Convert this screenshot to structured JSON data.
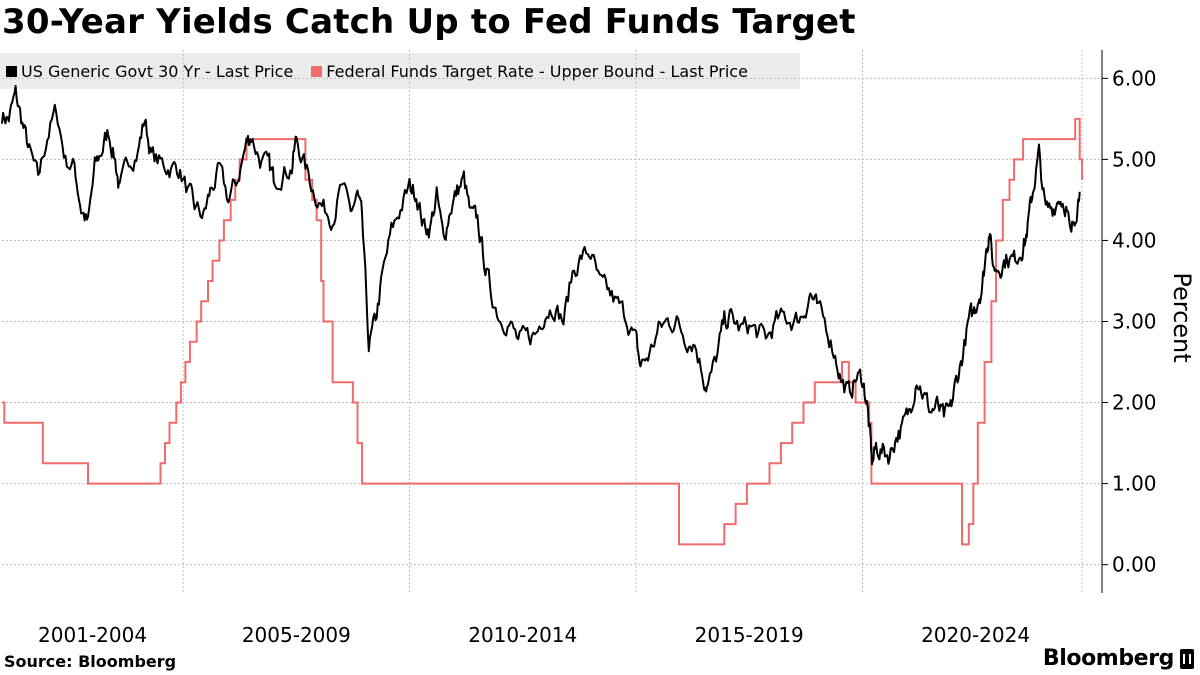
{
  "chart_data": {
    "type": "line",
    "title": "30-Year Yields Catch Up to Fed Funds Target",
    "ylabel": "Percent",
    "ylim": [
      -0.35,
      6.35
    ],
    "xlim": [
      2001.0,
      2024.85
    ],
    "y_ticks": [
      "0.00",
      "1.00",
      "2.00",
      "3.00",
      "4.00",
      "5.00",
      "6.00"
    ],
    "x_period_labels": [
      "2001-2004",
      "2005-2009",
      "2010-2014",
      "2015-2019",
      "2020-2024"
    ],
    "x_period_centers": [
      2003.0,
      2007.5,
      2012.5,
      2017.5,
      2022.5
    ],
    "x_period_boundaries": [
      2005.0,
      2010.0,
      2015.0,
      2020.0,
      2024.85
    ],
    "legend_position": "top-left",
    "grid": true,
    "series": [
      {
        "name": "US Generic Govt 30 Yr - Last Price",
        "color": "#000000",
        "x": [
          2001.0,
          2001.15,
          2001.3,
          2001.45,
          2001.6,
          2001.8,
          2002.0,
          2002.2,
          2002.4,
          2002.6,
          2002.75,
          2002.9,
          2003.05,
          2003.2,
          2003.35,
          2003.5,
          2003.6,
          2003.8,
          2004.0,
          2004.15,
          2004.3,
          2004.5,
          2004.7,
          2004.9,
          2005.1,
          2005.25,
          2005.45,
          2005.6,
          2005.8,
          2006.0,
          2006.2,
          2006.4,
          2006.5,
          2006.7,
          2006.9,
          2007.0,
          2007.2,
          2007.4,
          2007.5,
          2007.7,
          2007.9,
          2008.1,
          2008.3,
          2008.5,
          2008.7,
          2008.85,
          2008.95,
          2009.1,
          2009.25,
          2009.4,
          2009.6,
          2009.8,
          2010.0,
          2010.15,
          2010.3,
          2010.45,
          2010.6,
          2010.75,
          2010.9,
          2011.05,
          2011.2,
          2011.35,
          2011.5,
          2011.65,
          2011.8,
          2012.0,
          2012.2,
          2012.4,
          2012.6,
          2012.8,
          2013.0,
          2013.2,
          2013.4,
          2013.6,
          2013.8,
          2014.0,
          2014.2,
          2014.4,
          2014.6,
          2014.8,
          2015.0,
          2015.1,
          2015.3,
          2015.5,
          2015.7,
          2015.9,
          2016.1,
          2016.3,
          2016.5,
          2016.6,
          2016.8,
          2016.95,
          2017.1,
          2017.3,
          2017.5,
          2017.7,
          2017.9,
          2018.1,
          2018.3,
          2018.5,
          2018.7,
          2018.85,
          2019.0,
          2019.2,
          2019.4,
          2019.55,
          2019.7,
          2019.85,
          2020.0,
          2020.1,
          2020.18,
          2020.22,
          2020.3,
          2020.45,
          2020.6,
          2020.75,
          2020.9,
          2021.05,
          2021.2,
          2021.35,
          2021.5,
          2021.65,
          2021.8,
          2021.95,
          2022.05,
          2022.2,
          2022.35,
          2022.45,
          2022.55,
          2022.65,
          2022.75,
          2022.8,
          2022.9,
          2023.05,
          2023.2,
          2023.35,
          2023.5,
          2023.6,
          2023.7,
          2023.8,
          2023.9,
          2024.05,
          2024.2,
          2024.35,
          2024.5,
          2024.6,
          2024.7,
          2024.8
        ],
        "values": [
          5.55,
          5.5,
          5.8,
          5.45,
          5.1,
          4.75,
          5.3,
          5.6,
          5.0,
          4.9,
          4.4,
          4.2,
          4.9,
          5.1,
          5.35,
          5.0,
          4.6,
          5.0,
          5.1,
          5.5,
          5.05,
          4.95,
          4.9,
          4.9,
          4.6,
          4.4,
          4.3,
          4.6,
          4.85,
          4.5,
          4.75,
          5.2,
          5.3,
          5.0,
          4.9,
          4.75,
          4.85,
          4.9,
          5.25,
          4.9,
          4.6,
          4.4,
          4.3,
          4.65,
          4.35,
          4.55,
          4.25,
          2.7,
          3.0,
          3.55,
          4.1,
          4.4,
          4.65,
          4.6,
          4.2,
          4.15,
          4.55,
          4.0,
          4.4,
          4.6,
          4.75,
          4.3,
          4.25,
          3.75,
          3.35,
          3.05,
          3.0,
          2.75,
          2.8,
          2.85,
          3.15,
          3.2,
          3.0,
          3.6,
          3.8,
          3.85,
          3.45,
          3.35,
          3.2,
          3.05,
          2.75,
          2.45,
          2.6,
          2.9,
          3.0,
          3.0,
          2.8,
          2.75,
          2.3,
          2.2,
          2.6,
          3.0,
          3.05,
          2.9,
          2.95,
          2.85,
          2.8,
          3.0,
          3.05,
          3.0,
          3.1,
          3.35,
          3.15,
          2.95,
          2.6,
          2.25,
          2.1,
          2.3,
          2.3,
          2.0,
          1.5,
          1.25,
          1.45,
          1.4,
          1.35,
          1.6,
          1.7,
          1.9,
          2.35,
          2.1,
          1.9,
          1.95,
          1.8,
          1.9,
          2.2,
          2.55,
          3.0,
          3.1,
          3.3,
          3.45,
          3.95,
          4.1,
          3.65,
          3.7,
          3.8,
          3.75,
          3.9,
          4.0,
          4.35,
          4.75,
          5.05,
          4.35,
          4.4,
          4.55,
          4.45,
          4.0,
          4.35,
          4.6
        ],
        "approximate": true
      },
      {
        "name": "Federal Funds Target Rate - Upper Bound - Last Price",
        "color": "#f26b6b",
        "step": true,
        "x": [
          2001.0,
          2001.05,
          2001.9,
          2002.9,
          2004.5,
          2004.6,
          2004.7,
          2004.85,
          2004.95,
          2005.05,
          2005.15,
          2005.3,
          2005.4,
          2005.55,
          2005.65,
          2005.8,
          2005.9,
          2006.05,
          2006.15,
          2006.25,
          2006.4,
          2006.5,
          2007.7,
          2007.85,
          2007.95,
          2008.05,
          2008.1,
          2008.3,
          2008.75,
          2008.85,
          2008.95,
          2015.95,
          2016.95,
          2017.2,
          2017.45,
          2017.95,
          2018.2,
          2018.45,
          2018.7,
          2018.95,
          2019.55,
          2019.7,
          2019.85,
          2020.15,
          2020.2,
          2022.2,
          2022.35,
          2022.45,
          2022.55,
          2022.7,
          2022.85,
          2022.95,
          2023.1,
          2023.25,
          2023.35,
          2023.55,
          2024.7,
          2024.8,
          2024.85
        ],
        "values": [
          2.0,
          1.75,
          1.25,
          1.0,
          1.25,
          1.5,
          1.75,
          2.0,
          2.25,
          2.5,
          2.75,
          3.0,
          3.25,
          3.5,
          3.75,
          4.0,
          4.25,
          4.5,
          4.75,
          5.0,
          5.25,
          5.25,
          4.75,
          4.5,
          4.25,
          3.5,
          3.0,
          2.25,
          2.0,
          1.5,
          1.0,
          0.25,
          0.5,
          0.75,
          1.0,
          1.25,
          1.5,
          1.75,
          2.0,
          2.25,
          2.5,
          2.25,
          2.0,
          1.75,
          1.0,
          0.25,
          0.5,
          1.0,
          1.75,
          2.5,
          3.25,
          4.0,
          4.5,
          4.75,
          5.0,
          5.25,
          5.5,
          5.0,
          4.75
        ]
      }
    ]
  },
  "source_label": "Source: Bloomberg",
  "brand_label": "Bloomberg"
}
